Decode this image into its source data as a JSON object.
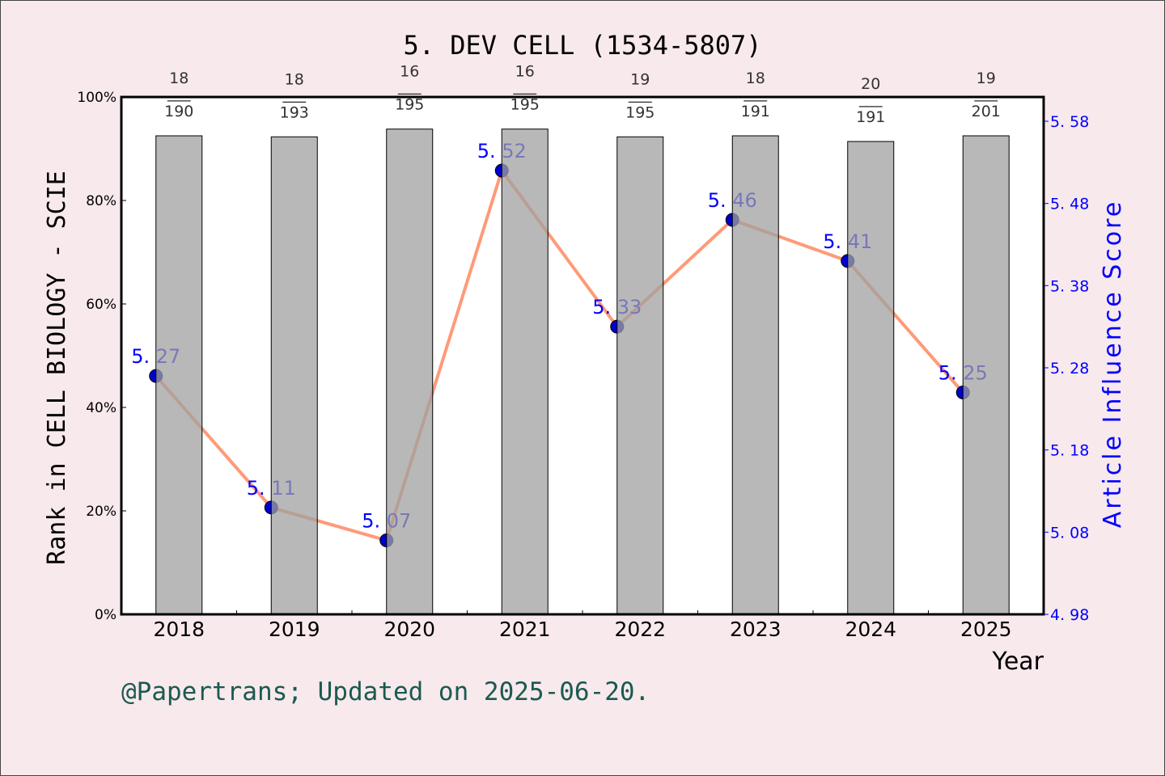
{
  "chart_data": {
    "type": "bar+line",
    "title": "5. DEV CELL (1534-5807)",
    "xlabel": "Year",
    "ylabel_left": "Rank in CELL BIOLOGY - SCIE",
    "ylabel_right": "Article Influence Score",
    "categories": [
      "2018",
      "2019",
      "2020",
      "2021",
      "2022",
      "2023",
      "2024",
      "2025"
    ],
    "left_axis": {
      "ylim": [
        0,
        100
      ],
      "ticks": [
        "0%",
        "20%",
        "40%",
        "60%",
        "80%",
        "100%"
      ]
    },
    "right_axis": {
      "ylim": [
        4.98,
        5.58
      ],
      "ticks": [
        "4. 98",
        "5. 08",
        "5. 18",
        "5. 28",
        "5. 38",
        "5. 48",
        "5. 58"
      ]
    },
    "bars": {
      "values_percent": [
        92.5,
        92.3,
        93.8,
        93.8,
        92.3,
        92.5,
        91.4,
        92.5
      ],
      "rank": [
        "18",
        "18",
        "16",
        "16",
        "19",
        "18",
        "20",
        "19"
      ],
      "total": [
        "190",
        "193",
        "195",
        "195",
        "195",
        "191",
        "191",
        "201"
      ],
      "color": "#a0a0a0"
    },
    "line": {
      "values": [
        5.27,
        5.11,
        5.07,
        5.52,
        5.33,
        5.46,
        5.41,
        5.25
      ],
      "labels": [
        "5. 27",
        "5. 11",
        "5. 07",
        "5. 52",
        "5. 33",
        "5. 46",
        "5. 41",
        "5. 25"
      ],
      "line_color": "#ff9a78",
      "marker_color": "#0000cc",
      "label_color": "#0000ff"
    },
    "grid": false,
    "footer": "@Papertrans; Updated on 2025-06-20."
  }
}
